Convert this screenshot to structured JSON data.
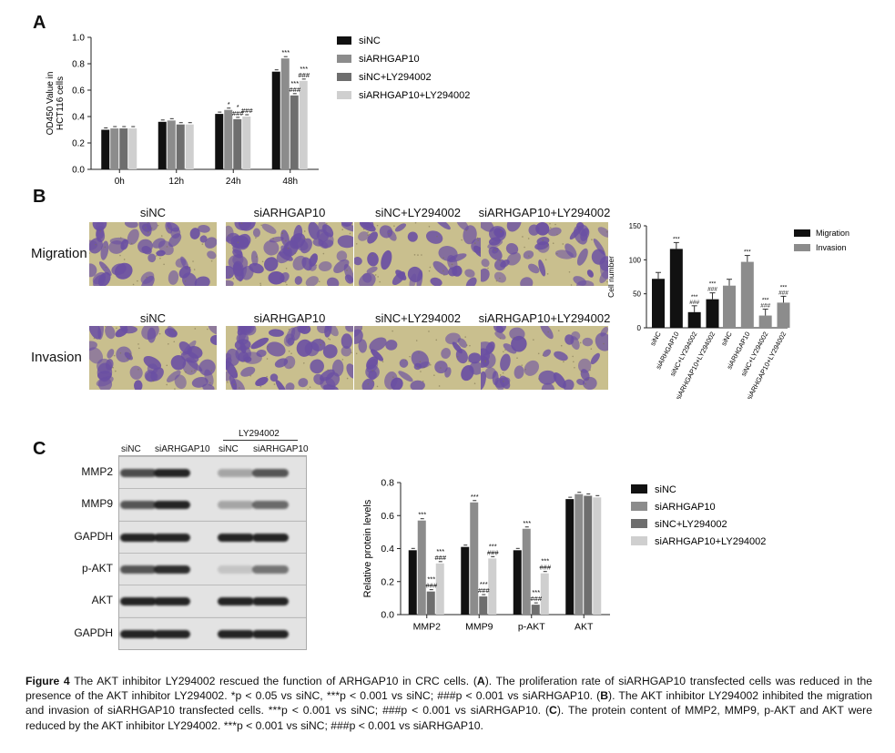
{
  "panels": {
    "a": "A",
    "b": "B",
    "c": "C"
  },
  "colors": {
    "siNC": "#111111",
    "siARHGAP10": "#8c8c8c",
    "siNC_LY": "#6e6e6e",
    "siARHGAP10_LY": "#cfcfcf",
    "migration": "#111111",
    "invasion": "#8c8c8c",
    "stain": "#6a4fa3",
    "background": "#c9bf8e"
  },
  "chart_data": [
    {
      "type": "bar",
      "panel": "A",
      "ylabel": "OD450 Value in HCT116 cells",
      "ylim": [
        0,
        1.0
      ],
      "yticks": [
        "0.0",
        "0.2",
        "0.4",
        "0.6",
        "0.8",
        "1.0"
      ],
      "categories": [
        "0h",
        "12h",
        "24h",
        "48h"
      ],
      "series": [
        {
          "name": "siNC",
          "values": [
            0.3,
            0.36,
            0.42,
            0.74
          ]
        },
        {
          "name": "siARHGAP10",
          "values": [
            0.31,
            0.37,
            0.45,
            0.84
          ]
        },
        {
          "name": "siNC+LY294002",
          "values": [
            0.31,
            0.34,
            0.38,
            0.56
          ]
        },
        {
          "name": "siARHGAP10+LY294002",
          "values": [
            0.31,
            0.34,
            0.4,
            0.67
          ]
        }
      ],
      "annotations": [
        {
          "category": "24h",
          "series": 1,
          "text": "*"
        },
        {
          "category": "24h",
          "series": 2,
          "text": "###"
        },
        {
          "category": "24h",
          "series": 2,
          "text": "*"
        },
        {
          "category": "24h",
          "series": 3,
          "text": "###"
        },
        {
          "category": "48h",
          "series": 1,
          "text": "***"
        },
        {
          "category": "48h",
          "series": 2,
          "text": "###"
        },
        {
          "category": "48h",
          "series": 2,
          "text": "***"
        },
        {
          "category": "48h",
          "series": 3,
          "text": "###"
        },
        {
          "category": "48h",
          "series": 3,
          "text": "***"
        }
      ]
    },
    {
      "type": "bar",
      "panel": "B",
      "ylabel": "Cell number",
      "ylim": [
        0,
        150
      ],
      "yticks": [
        "0",
        "50",
        "100",
        "150"
      ],
      "categories": [
        "siNC",
        "siARHGAP10",
        "siNC+LY294002",
        "siARHGAP10+LY294002"
      ],
      "series": [
        {
          "name": "Migration",
          "values": [
            72,
            116,
            23,
            42
          ]
        },
        {
          "name": "Invasion",
          "values": [
            62,
            97,
            18,
            37
          ]
        }
      ],
      "annotations": [
        {
          "series": 0,
          "category": 1,
          "text": "***"
        },
        {
          "series": 0,
          "category": 2,
          "text": "###"
        },
        {
          "series": 0,
          "category": 2,
          "text": "***"
        },
        {
          "series": 0,
          "category": 3,
          "text": "###"
        },
        {
          "series": 0,
          "category": 3,
          "text": "***"
        },
        {
          "series": 1,
          "category": 1,
          "text": "***"
        },
        {
          "series": 1,
          "category": 2,
          "text": "###"
        },
        {
          "series": 1,
          "category": 2,
          "text": "***"
        },
        {
          "series": 1,
          "category": 3,
          "text": "###"
        },
        {
          "series": 1,
          "category": 3,
          "text": "***"
        }
      ]
    },
    {
      "type": "bar",
      "panel": "C",
      "ylabel": "Relative protein levels",
      "ylim": [
        0,
        0.8
      ],
      "yticks": [
        "0.0",
        "0.2",
        "0.4",
        "0.6",
        "0.8"
      ],
      "categories": [
        "MMP2",
        "MMP9",
        "p-AKT",
        "AKT"
      ],
      "series": [
        {
          "name": "siNC",
          "values": [
            0.39,
            0.41,
            0.39,
            0.7
          ]
        },
        {
          "name": "siARHGAP10",
          "values": [
            0.57,
            0.68,
            0.52,
            0.73
          ]
        },
        {
          "name": "siNC+LY294002",
          "values": [
            0.14,
            0.11,
            0.06,
            0.72
          ]
        },
        {
          "name": "siARHGAP10+LY294002",
          "values": [
            0.31,
            0.34,
            0.25,
            0.71
          ]
        }
      ],
      "annotations": [
        {
          "category": "MMP2",
          "series": 1,
          "text": "***"
        },
        {
          "category": "MMP2",
          "series": 2,
          "text": "###"
        },
        {
          "category": "MMP2",
          "series": 2,
          "text": "***"
        },
        {
          "category": "MMP2",
          "series": 3,
          "text": "###"
        },
        {
          "category": "MMP2",
          "series": 3,
          "text": "***"
        },
        {
          "category": "MMP9",
          "series": 1,
          "text": "***"
        },
        {
          "category": "MMP9",
          "series": 2,
          "text": "###"
        },
        {
          "category": "MMP9",
          "series": 2,
          "text": "***"
        },
        {
          "category": "MMP9",
          "series": 3,
          "text": "###"
        },
        {
          "category": "MMP9",
          "series": 3,
          "text": "***"
        },
        {
          "category": "p-AKT",
          "series": 1,
          "text": "***"
        },
        {
          "category": "p-AKT",
          "series": 2,
          "text": "###"
        },
        {
          "category": "p-AKT",
          "series": 2,
          "text": "***"
        },
        {
          "category": "p-AKT",
          "series": 3,
          "text": "###"
        },
        {
          "category": "p-AKT",
          "series": 3,
          "text": "***"
        }
      ]
    }
  ],
  "panel_b_images": {
    "titles": [
      "siNC",
      "siARHGAP10",
      "siNC+LY294002",
      "siARHGAP10+LY294002"
    ],
    "rows": [
      "Migration",
      "Invasion"
    ],
    "density": [
      [
        0.55,
        0.9,
        0.3,
        0.5
      ],
      [
        0.5,
        0.8,
        0.2,
        0.4
      ]
    ]
  },
  "panel_c_blot": {
    "treatment": "LY294002",
    "lanes": [
      "siNC",
      "siARHGAP10",
      "siNC",
      "siARHGAP10"
    ],
    "rows": [
      {
        "label": "MMP2",
        "intensity": [
          0.75,
          0.95,
          0.3,
          0.7
        ]
      },
      {
        "label": "MMP9",
        "intensity": [
          0.7,
          0.95,
          0.3,
          0.6
        ]
      },
      {
        "label": "GAPDH",
        "intensity": [
          0.95,
          0.95,
          0.95,
          0.95
        ]
      },
      {
        "label": "p-AKT",
        "intensity": [
          0.7,
          0.9,
          0.15,
          0.55
        ]
      },
      {
        "label": "AKT",
        "intensity": [
          0.95,
          0.95,
          0.95,
          0.95
        ]
      },
      {
        "label": "GAPDH",
        "intensity": [
          0.95,
          0.95,
          0.95,
          0.95
        ]
      }
    ]
  },
  "caption": {
    "figure_label": "Figure 4",
    "intro": "The AKT inhibitor LY294002 rescued the function of ARHGAP10 in CRC cells. (",
    "a_letter": "A",
    "a_text": "). The proliferation rate of siARHGAP10 transfected cells was reduced in the presence of the AKT inhibitor LY294002. *p < 0.05 vs siNC, ***p < 0.001 vs siNC; ###p < 0.001 vs siARHGAP10. (",
    "b_letter": "B",
    "b_text": "). The AKT inhibitor LY294002 inhibited the migration and invasion of siARHGAP10 transfected cells. ***p < 0.001 vs siNC; ###p < 0.001 vs siARHGAP10. (",
    "c_letter": "C",
    "c_text": "). The protein content of MMP2, MMP9, p-AKT and AKT were reduced by the AKT inhibitor LY294002. ***p < 0.001 vs siNC; ###p < 0.001 vs siARHGAP10."
  }
}
